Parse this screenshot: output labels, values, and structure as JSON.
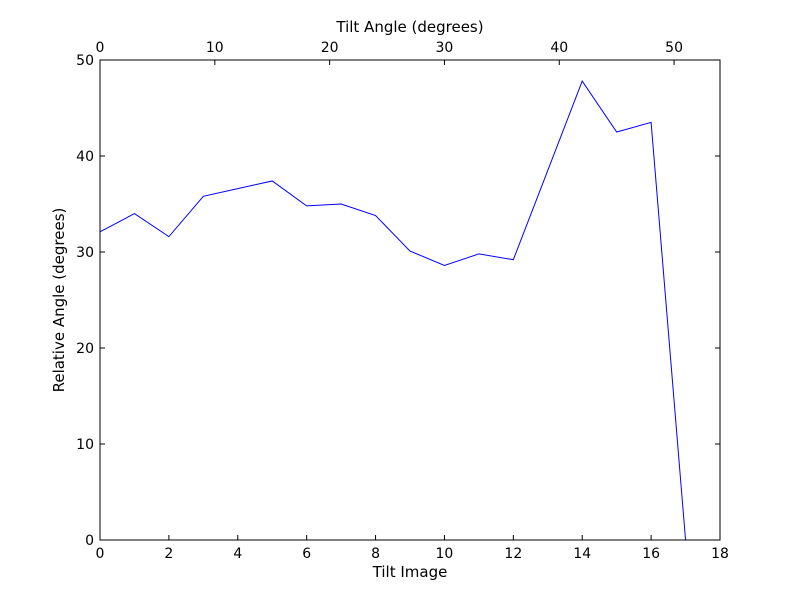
{
  "chart_data": {
    "type": "line",
    "title": "",
    "xlabel": "Tilt Image",
    "ylabel": "Relative Angle (degrees)",
    "x2label": "Tilt Angle (degrees)",
    "xlim": [
      0,
      18
    ],
    "ylim": [
      0,
      50
    ],
    "x2lim": [
      0,
      54
    ],
    "xticks": [
      0,
      2,
      4,
      6,
      8,
      10,
      12,
      14,
      16,
      18
    ],
    "yticks": [
      0,
      10,
      20,
      30,
      40,
      50
    ],
    "x2ticks": [
      0,
      10,
      20,
      30,
      40,
      50
    ],
    "grid": false,
    "legend": "none",
    "line_color": "#0000ff",
    "series": [
      {
        "x": [
          0,
          1,
          2,
          3,
          4,
          5,
          6,
          7,
          8,
          9,
          10,
          11,
          12,
          13,
          14,
          15,
          16,
          17
        ],
        "values": [
          32.1,
          34.0,
          31.6,
          35.8,
          36.6,
          37.4,
          34.8,
          35.0,
          33.8,
          30.1,
          28.6,
          29.8,
          29.2,
          38.5,
          47.8,
          42.5,
          43.5,
          0.0
        ]
      }
    ]
  }
}
